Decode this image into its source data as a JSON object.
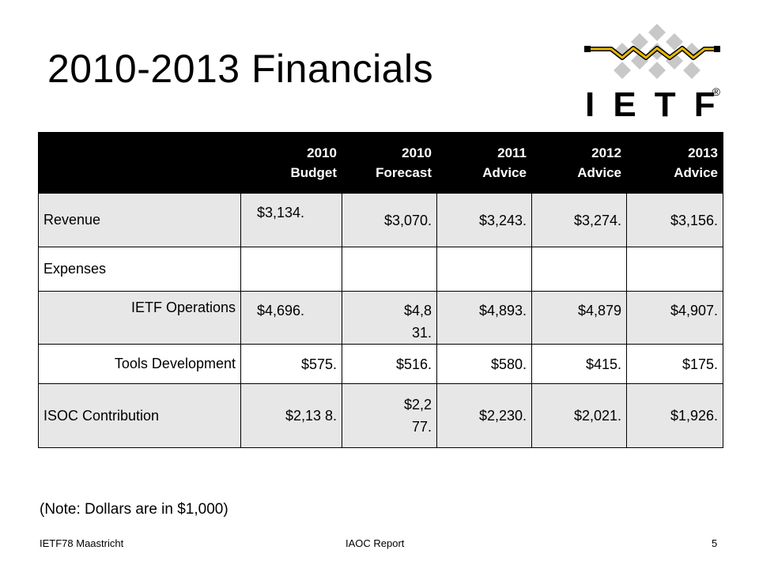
{
  "slide": {
    "title": "2010-2013 Financials",
    "note": "(Note: Dollars are in $1,000)",
    "footer_left": "IETF78 Maastricht",
    "footer_center": "IAOC Report",
    "page_number": "5"
  },
  "logo": {
    "letters": [
      "I",
      "E",
      "T",
      "F"
    ],
    "registered": "®",
    "colors": {
      "diamond": "#c8c8c8",
      "wave": "#e6b800",
      "outline": "#000000"
    }
  },
  "table": {
    "headers": [
      {
        "line1": "",
        "line2": ""
      },
      {
        "line1": "2010",
        "line2": "Budget"
      },
      {
        "line1": "2010",
        "line2": "Forecast"
      },
      {
        "line1": "2011",
        "line2": "Advice"
      },
      {
        "line1": "2012",
        "line2": "Advice"
      },
      {
        "line1": "2013",
        "line2": "Advice"
      }
    ],
    "rows": [
      {
        "label": "Revenue",
        "values": [
          "$3,134.",
          "$3,070.",
          "$3,243.",
          "$3,274.",
          "$3,156."
        ]
      },
      {
        "label": "Expenses",
        "values": [
          "",
          "",
          "",
          "",
          ""
        ]
      },
      {
        "label": "IETF Operations",
        "values": [
          "$4,696.",
          "$4,8 31.",
          "$4,893.",
          "$4,879",
          "$4,907."
        ]
      },
      {
        "label": "Tools Development",
        "values": [
          "$575.",
          "$516.",
          "$580.",
          "$415.",
          "$175."
        ]
      },
      {
        "label": "ISOC Contribution",
        "values": [
          "$2,13 8.",
          "$2,2 77.",
          "$2,230.",
          "$2,021.",
          "$1,926."
        ]
      }
    ]
  }
}
